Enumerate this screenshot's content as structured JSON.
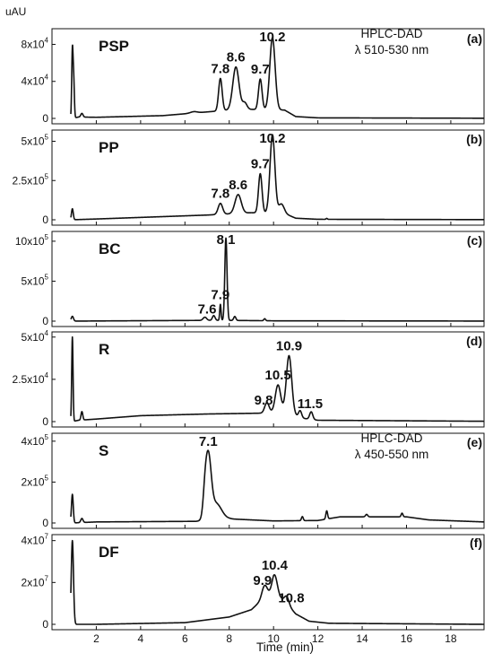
{
  "y_unit_label": "uAU",
  "x_axis_label": "Time (min)",
  "x_ticks": [
    "2",
    "4",
    "6",
    "8",
    "10",
    "12",
    "14",
    "16",
    "18"
  ],
  "chart_data": [
    {
      "type": "line",
      "panel_letter": "(a)",
      "sample": "PSP",
      "method": "HPLC-DAD",
      "wavelength": "λ 510-530 nm",
      "xlim": [
        0,
        19.5
      ],
      "ylim": [
        0,
        95000
      ],
      "y_ticks": [
        {
          "value": 0,
          "mant": "0",
          "exp": ""
        },
        {
          "value": 40000,
          "mant": "4x10",
          "exp": "4"
        },
        {
          "value": 80000,
          "mant": "8x10",
          "exp": "4"
        }
      ],
      "baseline": [
        [
          0.9,
          0
        ],
        [
          1.2,
          1500
        ],
        [
          2,
          1200
        ],
        [
          5,
          3000
        ],
        [
          7,
          7000
        ],
        [
          8.5,
          10000
        ],
        [
          10.5,
          9000
        ],
        [
          11,
          2000
        ],
        [
          12,
          600
        ],
        [
          19.5,
          200
        ]
      ],
      "peaks": [
        {
          "t": 0.92,
          "h": 73000,
          "w": 0.03
        },
        {
          "t": 0.98,
          "h": 40000,
          "w": 0.03
        },
        {
          "t": 1.35,
          "h": 4000,
          "w": 0.05
        },
        {
          "t": 6.4,
          "h": 1500,
          "w": 0.15
        },
        {
          "t": 7.6,
          "h": 35000,
          "w": 0.08
        },
        {
          "t": 8.3,
          "h": 46000,
          "w": 0.14
        },
        {
          "t": 8.7,
          "h": 7000,
          "w": 0.1
        },
        {
          "t": 9.4,
          "h": 33000,
          "w": 0.08
        },
        {
          "t": 9.95,
          "h": 78000,
          "w": 0.12
        }
      ],
      "peak_labels": [
        {
          "text": "7.8",
          "t": 7.6
        },
        {
          "text": "8.6",
          "t": 8.3
        },
        {
          "text": "9.7",
          "t": 9.4
        },
        {
          "text": "10.2",
          "t": 9.95
        }
      ]
    },
    {
      "type": "line",
      "panel_letter": "(b)",
      "sample": "PP",
      "xlim": [
        0,
        19.5
      ],
      "ylim": [
        0,
        560000
      ],
      "y_ticks": [
        {
          "value": 0,
          "mant": "0",
          "exp": ""
        },
        {
          "value": 250000,
          "mant": "2.5x10",
          "exp": "5"
        },
        {
          "value": 500000,
          "mant": "5x10",
          "exp": "5"
        }
      ],
      "baseline": [
        [
          0.9,
          0
        ],
        [
          2,
          5000
        ],
        [
          5,
          20000
        ],
        [
          7,
          30000
        ],
        [
          9,
          45000
        ],
        [
          10.5,
          40000
        ],
        [
          11,
          10000
        ],
        [
          12,
          3000
        ],
        [
          19.5,
          1000
        ]
      ],
      "peaks": [
        {
          "t": 0.92,
          "h": 70000,
          "w": 0.04
        },
        {
          "t": 7.6,
          "h": 70000,
          "w": 0.1
        },
        {
          "t": 8.4,
          "h": 120000,
          "w": 0.14
        },
        {
          "t": 9.4,
          "h": 250000,
          "w": 0.08
        },
        {
          "t": 9.95,
          "h": 500000,
          "w": 0.11
        },
        {
          "t": 10.35,
          "h": 60000,
          "w": 0.12
        },
        {
          "t": 12.4,
          "h": 6000,
          "w": 0.03
        }
      ],
      "peak_labels": [
        {
          "text": "7.8",
          "t": 7.6
        },
        {
          "text": "8.6",
          "t": 8.4
        },
        {
          "text": "9.7",
          "t": 9.4
        },
        {
          "text": "10.2",
          "t": 9.95
        }
      ]
    },
    {
      "type": "line",
      "panel_letter": "(c)",
      "sample": "BC",
      "xlim": [
        0,
        19.5
      ],
      "ylim": [
        0,
        1100000
      ],
      "y_ticks": [
        {
          "value": 0,
          "mant": "0",
          "exp": ""
        },
        {
          "value": 500000,
          "mant": "5x10",
          "exp": "5"
        },
        {
          "value": 1000000,
          "mant": "10x10",
          "exp": "5"
        }
      ],
      "baseline": [
        [
          0.9,
          0
        ],
        [
          2,
          2000
        ],
        [
          6,
          8000
        ],
        [
          7.5,
          10000
        ],
        [
          8.5,
          8000
        ],
        [
          10,
          4000
        ],
        [
          19.5,
          1000
        ]
      ],
      "peaks": [
        {
          "t": 0.92,
          "h": 60000,
          "w": 0.05
        },
        {
          "t": 6.9,
          "h": 40000,
          "w": 0.08
        },
        {
          "t": 7.3,
          "h": 60000,
          "w": 0.06
        },
        {
          "t": 7.6,
          "h": 200000,
          "w": 0.03
        },
        {
          "t": 7.85,
          "h": 1030000,
          "w": 0.05
        },
        {
          "t": 8.25,
          "h": 50000,
          "w": 0.05
        },
        {
          "t": 9.6,
          "h": 25000,
          "w": 0.04
        }
      ],
      "peak_labels": [
        {
          "text": "7.6",
          "t": 7.0
        },
        {
          "text": "7.9",
          "t": 7.6
        },
        {
          "text": "8.1",
          "t": 7.85
        }
      ]
    },
    {
      "type": "line",
      "panel_letter": "(d)",
      "sample": "R",
      "xlim": [
        0,
        19.5
      ],
      "ylim": [
        0,
        52000
      ],
      "y_ticks": [
        {
          "value": 0,
          "mant": "0",
          "exp": ""
        },
        {
          "value": 25000,
          "mant": "2.5x10",
          "exp": "4"
        },
        {
          "value": 50000,
          "mant": "5x10",
          "exp": "4"
        }
      ],
      "baseline": [
        [
          0.9,
          0
        ],
        [
          1.2,
          800
        ],
        [
          2,
          1500
        ],
        [
          4,
          3500
        ],
        [
          7,
          4500
        ],
        [
          9.5,
          5000
        ],
        [
          10.5,
          6000
        ],
        [
          11.3,
          2000
        ],
        [
          12,
          800
        ],
        [
          19.5,
          200
        ]
      ],
      "peaks": [
        {
          "t": 0.92,
          "h": 50000,
          "w": 0.03
        },
        {
          "t": 1.35,
          "h": 5000,
          "w": 0.04
        },
        {
          "t": 9.7,
          "h": 6000,
          "w": 0.1
        },
        {
          "t": 10.2,
          "h": 16000,
          "w": 0.12
        },
        {
          "t": 10.7,
          "h": 34000,
          "w": 0.12
        },
        {
          "t": 11.2,
          "h": 4000,
          "w": 0.07
        },
        {
          "t": 11.7,
          "h": 4500,
          "w": 0.07
        }
      ],
      "peak_labels": [
        {
          "text": "9.8",
          "t": 9.55
        },
        {
          "text": "10.5",
          "t": 10.2
        },
        {
          "text": "10.9",
          "t": 10.7
        },
        {
          "text": "11.5",
          "t": 11.65
        }
      ]
    },
    {
      "type": "line",
      "panel_letter": "(e)",
      "sample": "S",
      "method": "HPLC-DAD",
      "wavelength": "λ 450-550 nm",
      "xlim": [
        0,
        19.5
      ],
      "ylim": [
        0,
        430000
      ],
      "y_ticks": [
        {
          "value": 0,
          "mant": "0",
          "exp": ""
        },
        {
          "value": 200000,
          "mant": "2x10",
          "exp": "5"
        },
        {
          "value": 400000,
          "mant": "4x10",
          "exp": "5"
        }
      ],
      "baseline": [
        [
          0.9,
          0
        ],
        [
          2,
          5000
        ],
        [
          6.5,
          8000
        ],
        [
          8,
          20000
        ],
        [
          10,
          10000
        ],
        [
          12,
          12000
        ],
        [
          13,
          30000
        ],
        [
          16,
          30000
        ],
        [
          17,
          15000
        ],
        [
          19.5,
          5000
        ]
      ],
      "peaks": [
        {
          "t": 0.92,
          "h": 140000,
          "w": 0.04
        },
        {
          "t": 1.35,
          "h": 20000,
          "w": 0.05
        },
        {
          "t": 6.9,
          "h": 70000,
          "w": 0.08
        },
        {
          "t": 7.05,
          "h": 300000,
          "w": 0.13
        },
        {
          "t": 7.4,
          "h": 80000,
          "w": 0.25
        },
        {
          "t": 11.3,
          "h": 20000,
          "w": 0.04
        },
        {
          "t": 12.4,
          "h": 40000,
          "w": 0.04
        },
        {
          "t": 14.2,
          "h": 12000,
          "w": 0.05
        },
        {
          "t": 15.8,
          "h": 18000,
          "w": 0.04
        }
      ],
      "peak_labels": [
        {
          "text": "7.1",
          "t": 7.05
        }
      ]
    },
    {
      "type": "line",
      "panel_letter": "(f)",
      "sample": "DF",
      "xlim": [
        0,
        19.5
      ],
      "ylim": [
        0,
        42000000
      ],
      "y_ticks": [
        {
          "value": 0,
          "mant": "0",
          "exp": ""
        },
        {
          "value": 20000000,
          "mant": "2x10",
          "exp": "7"
        },
        {
          "value": 40000000,
          "mant": "4x10",
          "exp": "7"
        }
      ],
      "baseline": [
        [
          0.9,
          0
        ],
        [
          2,
          0
        ],
        [
          6,
          800000
        ],
        [
          8,
          3500000
        ],
        [
          9,
          7000000
        ],
        [
          9.5,
          12000000
        ],
        [
          10,
          15000000
        ],
        [
          10.5,
          11000000
        ],
        [
          11,
          5000000
        ],
        [
          11.6,
          1500000
        ],
        [
          12.5,
          500000
        ],
        [
          19.5,
          0
        ]
      ],
      "peaks": [
        {
          "t": 0.92,
          "h": 40000000,
          "w": 0.05
        },
        {
          "t": 9.6,
          "h": 6000000,
          "w": 0.12
        },
        {
          "t": 10.05,
          "h": 9000000,
          "w": 0.12
        },
        {
          "t": 10.6,
          "h": 3500000,
          "w": 0.1
        }
      ],
      "peak_labels": [
        {
          "text": "9.9",
          "t": 9.5
        },
        {
          "text": "10.4",
          "t": 10.05
        },
        {
          "text": "10.8",
          "t": 10.8
        }
      ]
    }
  ]
}
